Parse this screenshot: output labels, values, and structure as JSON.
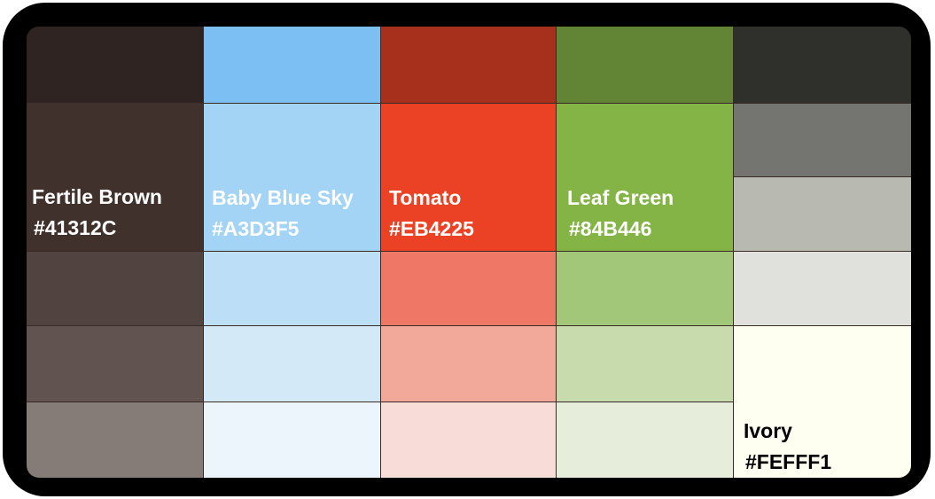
{
  "palette": {
    "columns": [
      {
        "name": "Fertile Brown",
        "hex": "#41312C",
        "label_color": "#ffffff",
        "shades": [
          "#2F2421",
          "#41312C",
          "#51433F",
          "#61534F",
          "#857B77"
        ]
      },
      {
        "name": "Baby Blue Sky",
        "hex": "#A3D3F5",
        "label_color": "#ffffff",
        "shades": [
          "#7CC0F3",
          "#A3D3F5",
          "#BCDFF7",
          "#D4E9F8",
          "#EDF5FC"
        ]
      },
      {
        "name": "Tomato",
        "hex": "#EB4225",
        "label_color": "#ffffff",
        "shades": [
          "#A7301C",
          "#EB4225",
          "#EE7865",
          "#F3A99A",
          "#F8DCD7"
        ]
      },
      {
        "name": "Leaf Green",
        "hex": "#84B446",
        "label_color": "#ffffff",
        "shades": [
          "#628535",
          "#84B446",
          "#A3C778",
          "#C7DBAC",
          "#E6EEDB"
        ]
      },
      {
        "name": "Ivory",
        "hex": "#FEFFF1",
        "label_color": "#000000",
        "shades": [
          "#2F302B",
          "#747470",
          "#B8B9B1",
          "#E0E1DD",
          "#FEFFF1"
        ]
      }
    ]
  }
}
